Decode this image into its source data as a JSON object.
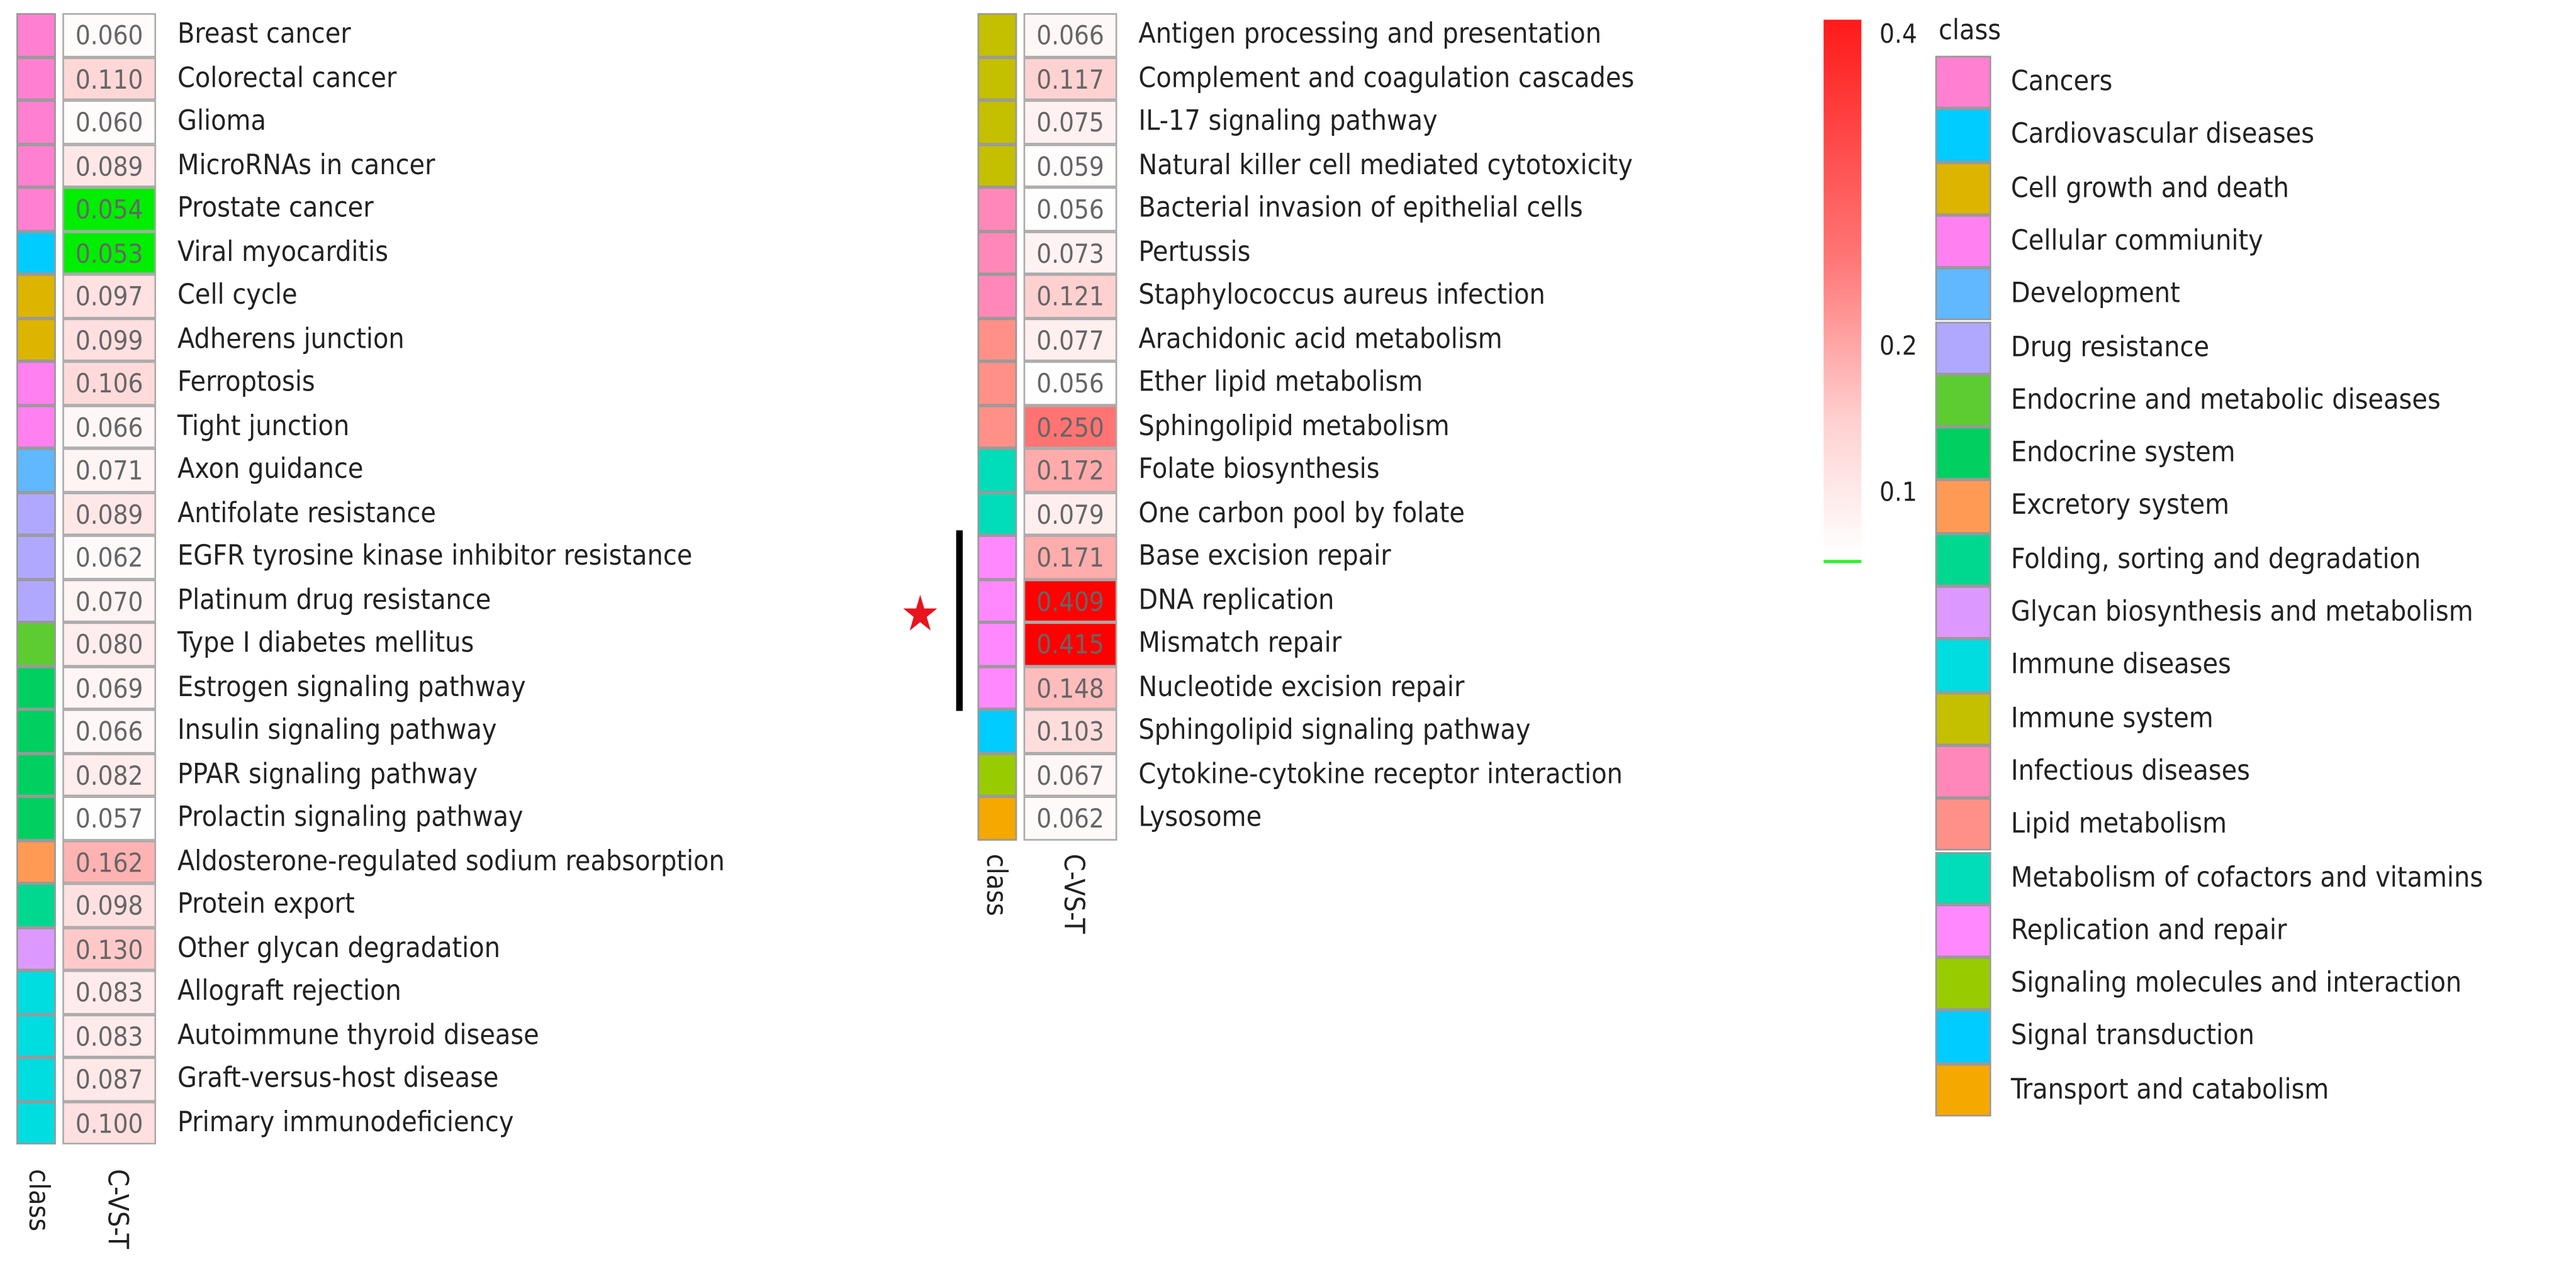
{
  "chart_data": {
    "type": "heatmap",
    "column_label": "C-VS-T",
    "class_column_label": "class",
    "color_scale": {
      "min_color": "#ffffff",
      "max_color": "#ff0000",
      "low_color": "#00ee00",
      "ticks": [
        "0.4",
        "0.2",
        "0.1"
      ]
    },
    "classes": [
      {
        "name": "Cancers",
        "color": "#ff80d0"
      },
      {
        "name": "Cardiovascular diseases",
        "color": "#00ccff"
      },
      {
        "name": "Cell growth and death",
        "color": "#ddb400"
      },
      {
        "name": "Cellular commiunity",
        "color": "#ff80f0"
      },
      {
        "name": "Development",
        "color": "#60b8ff"
      },
      {
        "name": "Drug resistance",
        "color": "#b0a8ff"
      },
      {
        "name": "Endocrine and metabolic diseases",
        "color": "#5ccc30"
      },
      {
        "name": "Endocrine system",
        "color": "#00d060"
      },
      {
        "name": "Excretory system",
        "color": "#ff9a55"
      },
      {
        "name": "Folding, sorting and degradation",
        "color": "#00d890"
      },
      {
        "name": "Glycan biosynthesis and metabolism",
        "color": "#dd99ff"
      },
      {
        "name": "Immune diseases",
        "color": "#00dde0"
      },
      {
        "name": "Immune system",
        "color": "#c4c000"
      },
      {
        "name": "Infectious diseases",
        "color": "#ff88b8"
      },
      {
        "name": "Lipid metabolism",
        "color": "#ff9088"
      },
      {
        "name": "Metabolism of cofactors and vitamins",
        "color": "#00ddb8"
      },
      {
        "name": "Replication and repair",
        "color": "#ff88ff"
      },
      {
        "name": "Signaling molecules and interaction",
        "color": "#99cc00"
      },
      {
        "name": "Signal transduction",
        "color": "#00ccff"
      },
      {
        "name": "Transport and catabolism",
        "color": "#f5a800"
      }
    ],
    "panels": [
      {
        "rows": [
          {
            "pathway": "Breast cancer",
            "value": "0.060",
            "class": 0
          },
          {
            "pathway": "Colorectal cancer",
            "value": "0.110",
            "class": 0
          },
          {
            "pathway": "Glioma",
            "value": "0.060",
            "class": 0
          },
          {
            "pathway": "MicroRNAs in cancer",
            "value": "0.089",
            "class": 0
          },
          {
            "pathway": "Prostate cancer",
            "value": "0.054",
            "class": 0
          },
          {
            "pathway": "Viral myocarditis",
            "value": "0.053",
            "class": 1
          },
          {
            "pathway": "Cell cycle",
            "value": "0.097",
            "class": 2
          },
          {
            "pathway": "Adherens junction",
            "value": "0.099",
            "class": 2
          },
          {
            "pathway": "Ferroptosis",
            "value": "0.106",
            "class": 3
          },
          {
            "pathway": "Tight junction",
            "value": "0.066",
            "class": 3
          },
          {
            "pathway": "Axon guidance",
            "value": "0.071",
            "class": 4
          },
          {
            "pathway": "Antifolate resistance",
            "value": "0.089",
            "class": 5
          },
          {
            "pathway": "EGFR tyrosine kinase inhibitor resistance",
            "value": "0.062",
            "class": 5
          },
          {
            "pathway": "Platinum drug resistance",
            "value": "0.070",
            "class": 5
          },
          {
            "pathway": "Type I diabetes mellitus",
            "value": "0.080",
            "class": 6
          },
          {
            "pathway": "Estrogen signaling pathway",
            "value": "0.069",
            "class": 7
          },
          {
            "pathway": "Insulin signaling pathway",
            "value": "0.066",
            "class": 7
          },
          {
            "pathway": "PPAR signaling pathway",
            "value": "0.082",
            "class": 7
          },
          {
            "pathway": "Prolactin signaling pathway",
            "value": "0.057",
            "class": 7
          },
          {
            "pathway": "Aldosterone-regulated sodium reabsorption",
            "value": "0.162",
            "class": 8
          },
          {
            "pathway": "Protein export",
            "value": "0.098",
            "class": 9
          },
          {
            "pathway": "Other glycan degradation",
            "value": "0.130",
            "class": 10
          },
          {
            "pathway": "Allograft rejection",
            "value": "0.083",
            "class": 11
          },
          {
            "pathway": "Autoimmune thyroid disease",
            "value": "0.083",
            "class": 11
          },
          {
            "pathway": "Graft-versus-host disease",
            "value": "0.087",
            "class": 11
          },
          {
            "pathway": "Primary immunodeficiency",
            "value": "0.100",
            "class": 11
          }
        ]
      },
      {
        "rows": [
          {
            "pathway": "Antigen processing and presentation",
            "value": "0.066",
            "class": 12
          },
          {
            "pathway": "Complement and coagulation cascades",
            "value": "0.117",
            "class": 12
          },
          {
            "pathway": "IL-17 signaling pathway",
            "value": "0.075",
            "class": 12
          },
          {
            "pathway": "Natural killer cell mediated cytotoxicity",
            "value": "0.059",
            "class": 12
          },
          {
            "pathway": "Bacterial invasion of epithelial cells",
            "value": "0.056",
            "class": 13
          },
          {
            "pathway": "Pertussis",
            "value": "0.073",
            "class": 13
          },
          {
            "pathway": "Staphylococcus aureus infection",
            "value": "0.121",
            "class": 13
          },
          {
            "pathway": "Arachidonic acid metabolism",
            "value": "0.077",
            "class": 14
          },
          {
            "pathway": "Ether lipid metabolism",
            "value": "0.056",
            "class": 14
          },
          {
            "pathway": "Sphingolipid metabolism",
            "value": "0.250",
            "class": 14
          },
          {
            "pathway": "Folate biosynthesis",
            "value": "0.172",
            "class": 15
          },
          {
            "pathway": "One carbon pool by folate",
            "value": "0.079",
            "class": 15
          },
          {
            "pathway": "Base excision repair",
            "value": "0.171",
            "class": 16
          },
          {
            "pathway": "DNA replication",
            "value": "0.409",
            "class": 16
          },
          {
            "pathway": "Mismatch repair",
            "value": "0.415",
            "class": 16
          },
          {
            "pathway": "Nucleotide excision repair",
            "value": "0.148",
            "class": 16
          },
          {
            "pathway": "Sphingolipid signaling pathway",
            "value": "0.103",
            "class": 18
          },
          {
            "pathway": "Cytokine-cytokine receptor interaction",
            "value": "0.067",
            "class": 17
          },
          {
            "pathway": "Lysosome",
            "value": "0.062",
            "class": 19
          }
        ]
      }
    ],
    "highlight": {
      "marker": "star",
      "color": "#e8141e",
      "rows": [
        "Base excision repair",
        "DNA replication",
        "Mismatch repair",
        "Nucleotide excision repair"
      ]
    }
  }
}
